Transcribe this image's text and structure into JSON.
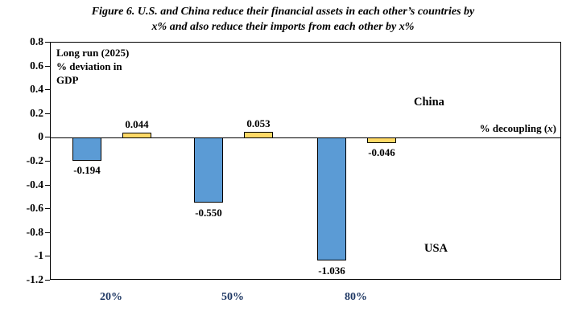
{
  "figure": {
    "title_line1": "Figure 6.  U.S. and China reduce their financial assets in each other’s countries by",
    "title_line2": "x% and also reduce their imports from each other by x%"
  },
  "chart_data": {
    "type": "bar",
    "categories": [
      "20%",
      "50%",
      "80%"
    ],
    "series": [
      {
        "name": "USA",
        "color": "#5B9BD5",
        "values": [
          -0.194,
          -0.55,
          -1.036
        ],
        "labels": [
          "-0.194",
          "-0.550",
          "-1.036"
        ]
      },
      {
        "name": "China",
        "color": "#FFD966",
        "values": [
          0.044,
          0.053,
          -0.046
        ],
        "labels": [
          "0.044",
          "0.053",
          "-0.046"
        ]
      }
    ],
    "ylim": [
      -1.2,
      0.8
    ],
    "yticks": [
      "0.8",
      "0.6",
      "0.4",
      "0.2",
      "0",
      "-0.2",
      "-0.4",
      "-0.6",
      "-0.8",
      "-1",
      "-1.2"
    ],
    "grid": false,
    "legend_position": "in-plot text labels",
    "plot_note_lines": [
      "Long run (2025)",
      "% deviation in",
      "GDP"
    ],
    "x_axis_label": {
      "prefix": "% decoupling (",
      "var": "x",
      "suffix": ")"
    },
    "xtick_color": "#1F3864",
    "bar_border_color": "#000000"
  }
}
